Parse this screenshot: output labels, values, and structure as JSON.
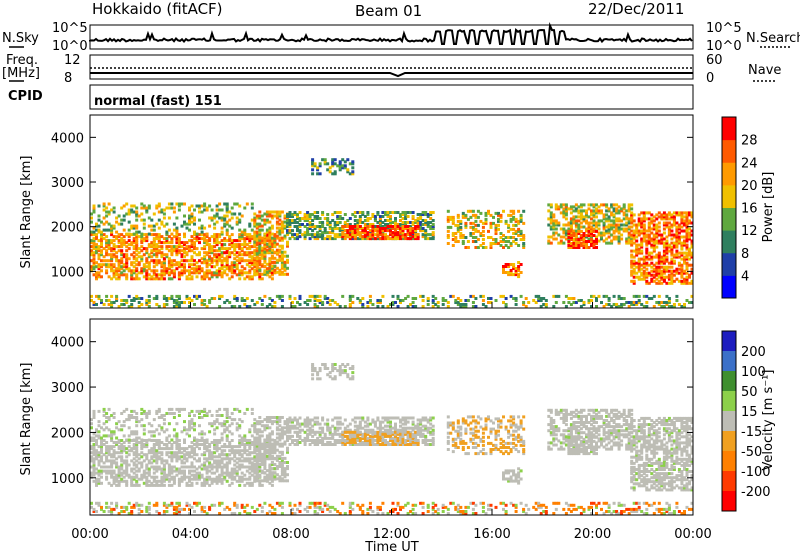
{
  "header": {
    "station": "Hokkaido (fitACF)",
    "beam": "Beam 01",
    "date": "22/Dec/2011"
  },
  "strips": {
    "nsky_label": "N.Sky",
    "nsky_ticks": [
      "10^5",
      "10^0"
    ],
    "nsearch_label": "N.Search",
    "nsearch_ticks": [
      "10^5",
      "10^0"
    ],
    "freq_label_1": "Freq.",
    "freq_label_2": "[MHz]",
    "freq_ticks": [
      "12",
      "8"
    ],
    "nave_label": "Nave",
    "nave_ticks": [
      "60",
      "0"
    ],
    "cpid_label": "CPID",
    "cpid_text": "normal (fast) 151"
  },
  "colors": {
    "power": [
      "#0000ff",
      "#1f3fa8",
      "#2f7f5f",
      "#5fa83f",
      "#f0c000",
      "#ff9a00",
      "#ff5a00",
      "#ff0000"
    ],
    "velocity": [
      "#1d1dbf",
      "#3b70c8",
      "#3f8f2f",
      "#8cd04a",
      "#bdbdb5",
      "#f0a020",
      "#ff8000",
      "#ff3a00",
      "#ff0000"
    ],
    "ground_scatter": "#bdbdb5"
  },
  "chart_data": [
    {
      "type": "heatmap",
      "name": "power",
      "ylabel": "Slant Range [km]",
      "xlabel": "",
      "ylim": [
        180,
        4500
      ],
      "xlim": [
        0,
        24
      ],
      "y_ticks": [
        "1000",
        "2000",
        "3000",
        "4000"
      ],
      "colorbar": {
        "label": "Power [dB]",
        "ticks": [
          "4",
          "8",
          "12",
          "16",
          "20",
          "24",
          "28"
        ],
        "range": [
          0,
          32
        ]
      }
    },
    {
      "type": "heatmap",
      "name": "velocity",
      "ylabel": "Slant Range [km]",
      "xlabel": "Time UT",
      "ylim": [
        180,
        4500
      ],
      "xlim": [
        0,
        24
      ],
      "y_ticks": [
        "1000",
        "2000",
        "3000",
        "4000"
      ],
      "x_ticks": [
        "00:00",
        "04:00",
        "08:00",
        "12:00",
        "16:00",
        "20:00",
        "00:00"
      ],
      "colorbar": {
        "label": "Velocity [m s⁻¹]",
        "ticks": [
          "200",
          "100",
          "50",
          "15",
          "-15",
          "-50",
          "-100",
          "-200"
        ]
      }
    }
  ]
}
